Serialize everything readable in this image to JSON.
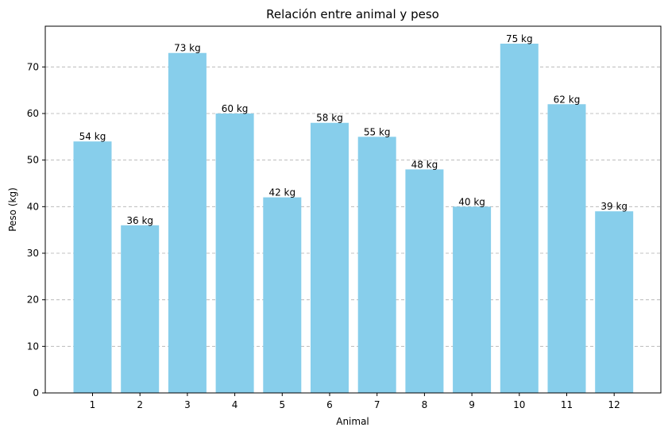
{
  "chart_data": {
    "type": "bar",
    "title": "Relación entre animal y peso",
    "xlabel": "Animal",
    "ylabel": "Peso (kg)",
    "categories": [
      "1",
      "2",
      "3",
      "4",
      "5",
      "6",
      "7",
      "8",
      "9",
      "10",
      "11",
      "12"
    ],
    "values": [
      54,
      36,
      73,
      60,
      42,
      58,
      55,
      48,
      40,
      75,
      62,
      39
    ],
    "data_labels": [
      "54 kg",
      "36 kg",
      "73 kg",
      "60 kg",
      "42 kg",
      "58 kg",
      "55 kg",
      "48 kg",
      "40 kg",
      "75 kg",
      "62 kg",
      "39 kg"
    ],
    "yticks": [
      0,
      10,
      20,
      30,
      40,
      50,
      60,
      70
    ],
    "ylim": [
      0,
      78.75
    ],
    "grid": "y-dashed",
    "bar_color": "#87ceeb"
  }
}
